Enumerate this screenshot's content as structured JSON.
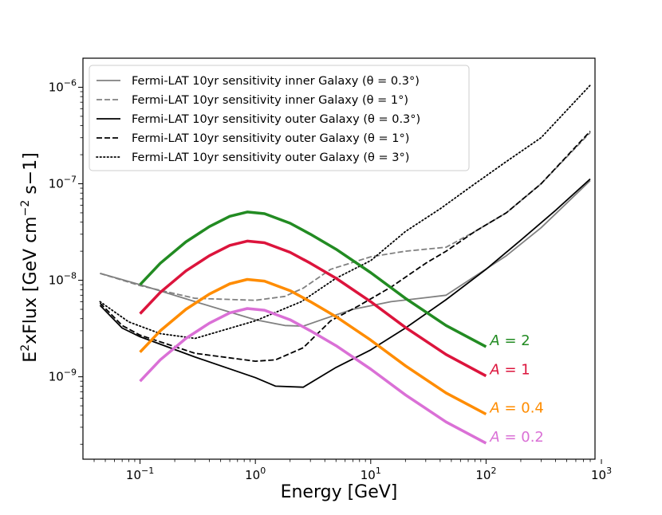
{
  "chart_data": {
    "type": "line",
    "title": "",
    "xlabel": "Energy [GeV]",
    "ylabel_parts": [
      "E",
      "2",
      "xFlux [GeV cm",
      "−2",
      " s−1]"
    ],
    "xscale": "log",
    "yscale": "log",
    "xlim": [
      0.032,
      880
    ],
    "ylim": [
      1.4e-10,
      2e-06
    ],
    "xticks": [
      {
        "value": 0.1,
        "base": "10",
        "exp": "−1"
      },
      {
        "value": 1,
        "base": "10",
        "exp": "0"
      },
      {
        "value": 10,
        "base": "10",
        "exp": "1"
      },
      {
        "value": 100,
        "base": "10",
        "exp": "2"
      },
      {
        "value": 1000,
        "base": "10",
        "exp": "3"
      }
    ],
    "yticks": [
      {
        "value": 1e-09,
        "base": "10",
        "exp": "−9"
      },
      {
        "value": 1e-08,
        "base": "10",
        "exp": "−8"
      },
      {
        "value": 1e-07,
        "base": "10",
        "exp": "−7"
      },
      {
        "value": 1e-06,
        "base": "10",
        "exp": "−6"
      }
    ],
    "legend_position": "top-left",
    "series": [
      {
        "name": "sens-inner-0.3",
        "label": "Fermi-LAT 10yr sensitivity inner Galaxy (θ = 0.3°)",
        "color": "#808080",
        "style": "solid",
        "x": [
          0.045,
          0.1,
          0.3,
          1,
          1.8,
          2.6,
          4,
          7,
          15,
          30,
          45,
          80,
          150,
          300,
          800
        ],
        "y": [
          1.18e-08,
          9e-09,
          6e-09,
          3.9e-09,
          3.4e-09,
          3.35e-09,
          4e-09,
          5e-09,
          6e-09,
          6.6e-09,
          7e-09,
          1.1e-08,
          1.8e-08,
          3.5e-08,
          1.08e-07
        ]
      },
      {
        "name": "sens-inner-1",
        "label": "Fermi-LAT 10yr sensitivity inner Galaxy (θ = 1°)",
        "color": "#808080",
        "style": "dashed",
        "x": [
          0.045,
          0.1,
          0.3,
          1,
          1.8,
          2.6,
          4.5,
          10,
          20,
          45,
          80,
          150,
          300,
          800
        ],
        "y": [
          1.18e-08,
          8.8e-09,
          6.5e-09,
          6.2e-09,
          6.8e-09,
          8.3e-09,
          1.3e-08,
          1.75e-08,
          2e-08,
          2.2e-08,
          3.2e-08,
          5e-08,
          1e-07,
          3.4e-07
        ]
      },
      {
        "name": "sens-outer-0.3",
        "label": "Fermi-LAT 10yr sensitivity outer Galaxy (θ = 0.3°)",
        "color": "#000000",
        "style": "solid",
        "x": [
          0.045,
          0.07,
          0.1,
          0.3,
          1,
          1.5,
          2.6,
          5,
          10,
          20,
          45,
          100,
          200,
          400,
          800
        ],
        "y": [
          5.5e-09,
          3.2e-09,
          2.6e-09,
          1.6e-09,
          9.8e-10,
          8e-10,
          7.8e-10,
          1.25e-09,
          1.9e-09,
          3.2e-09,
          6.3e-09,
          1.3e-08,
          2.6e-08,
          5.3e-08,
          1.12e-07
        ]
      },
      {
        "name": "sens-outer-1",
        "label": "Fermi-LAT 10yr sensitivity outer Galaxy (θ = 1°)",
        "color": "#000000",
        "style": "dashed",
        "x": [
          0.045,
          0.07,
          0.1,
          0.3,
          1,
          1.5,
          2.6,
          4.5,
          8,
          15,
          30,
          45,
          80,
          150,
          300,
          800
        ],
        "y": [
          5.8e-09,
          3.4e-09,
          2.7e-09,
          1.75e-09,
          1.45e-09,
          1.5e-09,
          2e-09,
          3.8e-09,
          5.5e-09,
          8.5e-09,
          1.5e-08,
          2e-08,
          3.2e-08,
          5e-08,
          1e-07,
          3.5e-07
        ]
      },
      {
        "name": "sens-outer-3",
        "label": "Fermi-LAT 10yr sensitivity outer Galaxy (θ = 3°)",
        "color": "#000000",
        "style": "dotted",
        "x": [
          0.045,
          0.08,
          0.15,
          0.3,
          1,
          2.5,
          5,
          10,
          20,
          40,
          80,
          150,
          300,
          800
        ],
        "y": [
          6e-09,
          3.7e-09,
          2.8e-09,
          2.5e-09,
          3.8e-09,
          6e-09,
          1.05e-08,
          1.6e-08,
          3.2e-08,
          5.5e-08,
          1e-07,
          1.7e-07,
          3e-07,
          1.05e-06
        ]
      },
      {
        "name": "model-A2",
        "label": "A = 2",
        "color": "#228b22",
        "style": "solid",
        "thick": true,
        "x": [
          0.1,
          0.15,
          0.25,
          0.4,
          0.6,
          0.85,
          1.2,
          2,
          3,
          5,
          10,
          20,
          45,
          100
        ],
        "y": [
          9e-09,
          1.5e-08,
          2.5e-08,
          3.6e-08,
          4.6e-08,
          5.1e-08,
          4.9e-08,
          3.9e-08,
          3e-08,
          2.1e-08,
          1.2e-08,
          6.5e-09,
          3.4e-09,
          2.05e-09
        ]
      },
      {
        "name": "model-A1",
        "label": "A = 1",
        "color": "#dc143c",
        "style": "solid",
        "thick": true,
        "x": [
          0.1,
          0.15,
          0.25,
          0.4,
          0.6,
          0.85,
          1.2,
          2,
          3,
          5,
          10,
          20,
          45,
          100
        ],
        "y": [
          4.5e-09,
          7.5e-09,
          1.25e-08,
          1.8e-08,
          2.3e-08,
          2.55e-08,
          2.45e-08,
          1.95e-08,
          1.5e-08,
          1.05e-08,
          6e-09,
          3.25e-09,
          1.7e-09,
          1.02e-09
        ]
      },
      {
        "name": "model-A0.4",
        "label": "A = 0.4",
        "color": "#ff8c00",
        "style": "solid",
        "thick": true,
        "x": [
          0.1,
          0.15,
          0.25,
          0.4,
          0.6,
          0.85,
          1.2,
          2,
          3,
          5,
          10,
          20,
          45,
          100
        ],
        "y": [
          1.8e-09,
          3e-09,
          5e-09,
          7.2e-09,
          9.2e-09,
          1.02e-08,
          9.8e-09,
          7.8e-09,
          6e-09,
          4.2e-09,
          2.4e-09,
          1.3e-09,
          6.8e-10,
          4.1e-10
        ]
      },
      {
        "name": "model-A0.2",
        "label": "A = 0.2",
        "color": "#da70d6",
        "style": "solid",
        "thick": true,
        "x": [
          0.1,
          0.15,
          0.25,
          0.4,
          0.6,
          0.85,
          1.2,
          2,
          3,
          5,
          10,
          20,
          45,
          100
        ],
        "y": [
          9e-10,
          1.5e-09,
          2.5e-09,
          3.6e-09,
          4.6e-09,
          5.1e-09,
          4.9e-09,
          3.9e-09,
          3e-09,
          2.1e-09,
          1.2e-09,
          6.5e-10,
          3.4e-10,
          2.05e-10
        ]
      }
    ],
    "annotations": [
      {
        "series": "model-A2",
        "prefix": "A",
        "text": " = 2",
        "color": "#228b22"
      },
      {
        "series": "model-A1",
        "prefix": "A",
        "text": " = 1",
        "color": "#dc143c"
      },
      {
        "series": "model-A0.4",
        "prefix": "A",
        "text": " = 0.4",
        "color": "#ff8c00"
      },
      {
        "series": "model-A0.2",
        "prefix": "A",
        "text": " = 0.2",
        "color": "#da70d6"
      }
    ]
  }
}
